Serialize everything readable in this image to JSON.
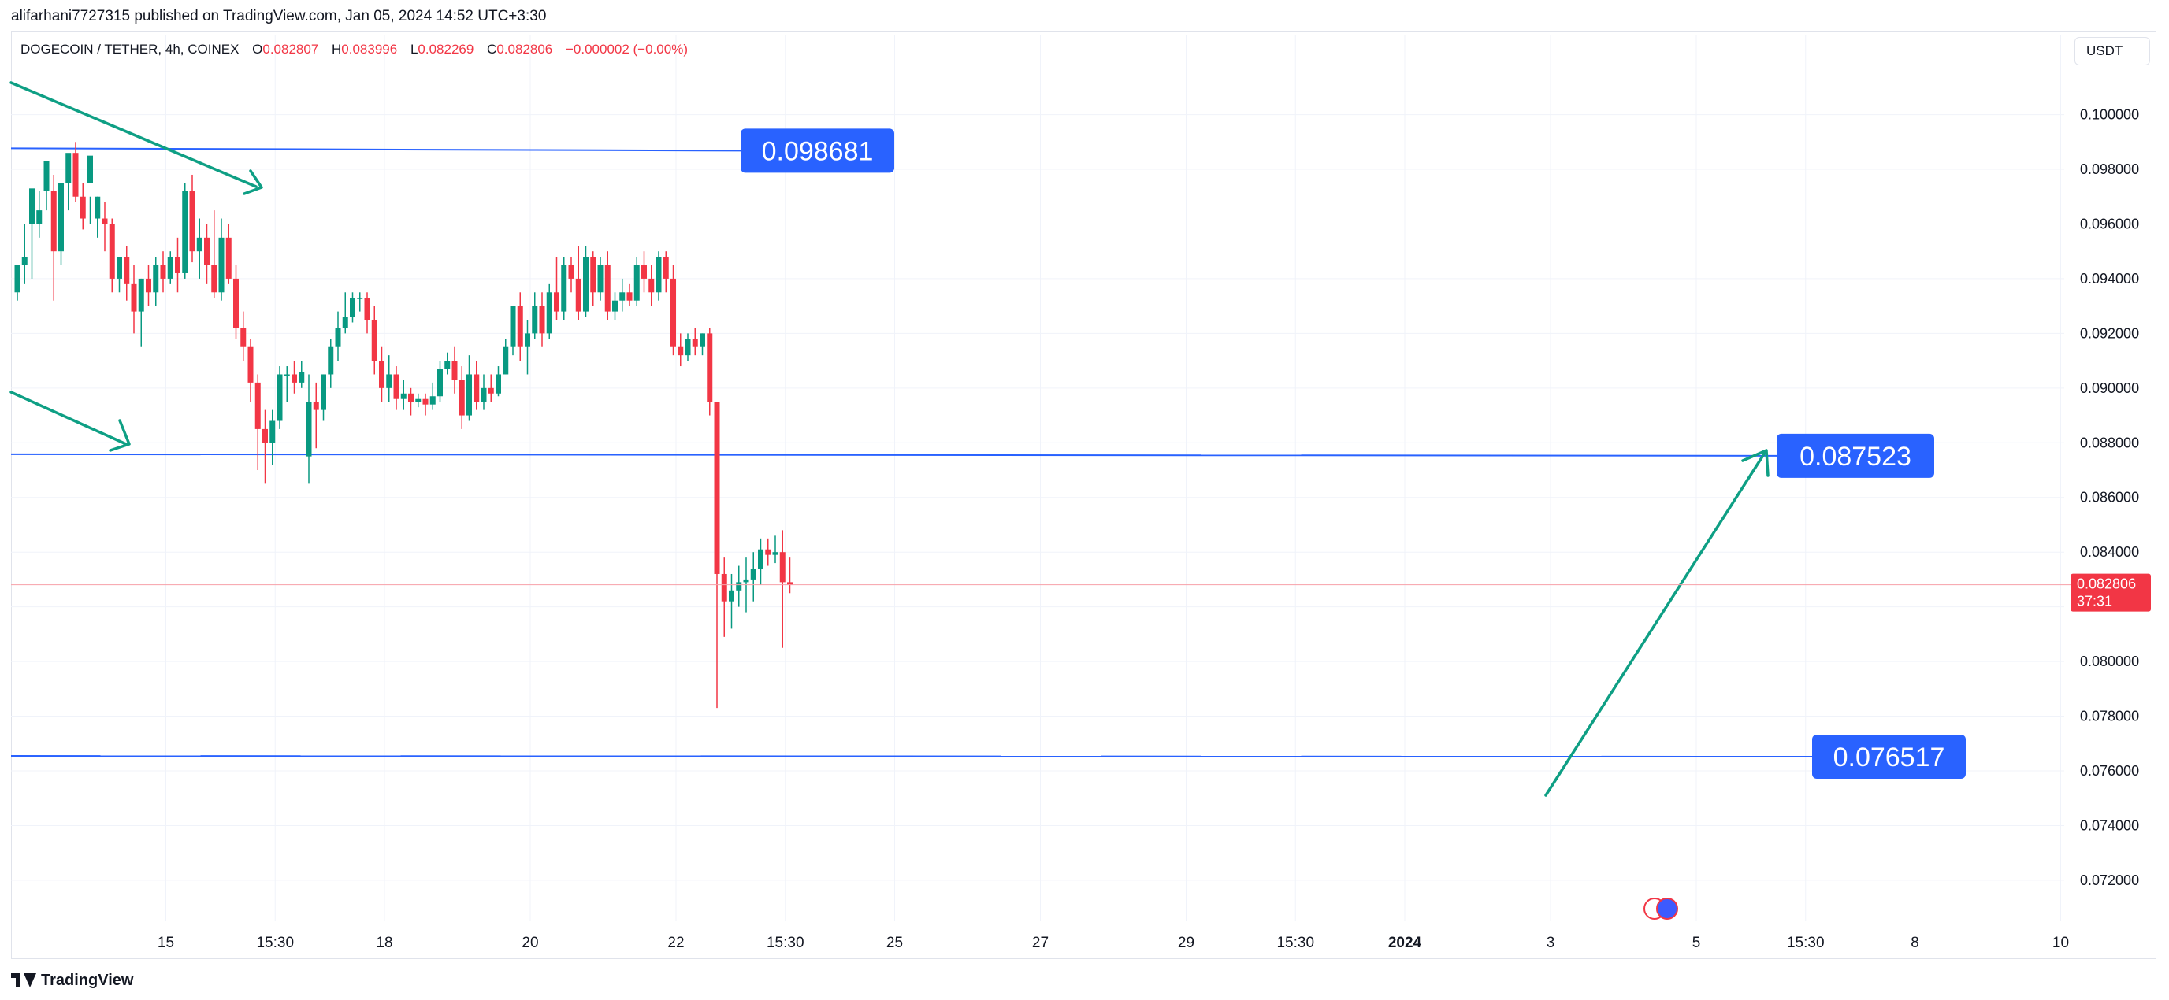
{
  "header": {
    "published_text": "alifarhani7727315 published on TradingView.com, Jan 05, 2024 14:52 UTC+3:30"
  },
  "legend": {
    "symbol": "DOGECOIN / TETHER, 4h, COINEX",
    "open_label": "O",
    "open_value": "0.082807",
    "high_label": "H",
    "high_value": "0.083996",
    "low_label": "L",
    "low_value": "0.082269",
    "close_label": "C",
    "close_value": "0.082806",
    "change": "−0.000002 (−0.00%)"
  },
  "currency_button": "USDT",
  "footer": {
    "brand": "TradingView"
  },
  "colors": {
    "up": "#089981",
    "down": "#f23645",
    "level_line": "#2962ff",
    "label_bg": "#2962ff",
    "arrow": "#0e9f84",
    "grid": "#f0f3fa",
    "axis_text": "#131722"
  },
  "chart_data": {
    "type": "candlestick",
    "ylim": [
      0.0705,
      0.1016
    ],
    "y_ticks": [
      "0.100000",
      "0.098000",
      "0.096000",
      "0.094000",
      "0.092000",
      "0.090000",
      "0.088000",
      "0.086000",
      "0.084000",
      "0.082000",
      "0.080000",
      "0.078000",
      "0.076000",
      "0.074000",
      "0.072000"
    ],
    "x_ticks": [
      {
        "label": "15",
        "bar": 10,
        "bold": false
      },
      {
        "label": "15:30",
        "bar": 25,
        "bold": false
      },
      {
        "label": "18",
        "bar": 40,
        "bold": false
      },
      {
        "label": "20",
        "bar": 60,
        "bold": false
      },
      {
        "label": "22",
        "bar": 80,
        "bold": false
      },
      {
        "label": "15:30",
        "bar": 95,
        "bold": false
      },
      {
        "label": "25",
        "bar": 110,
        "bold": false
      },
      {
        "label": "27",
        "bar": 130,
        "bold": false
      },
      {
        "label": "29",
        "bar": 150,
        "bold": false
      },
      {
        "label": "15:30",
        "bar": 165,
        "bold": false
      },
      {
        "label": "2024",
        "bar": 180,
        "bold": true
      },
      {
        "label": "3",
        "bar": 200,
        "bold": false
      },
      {
        "label": "5",
        "bar": 220,
        "bold": false
      },
      {
        "label": "15:30",
        "bar": 235,
        "bold": false
      },
      {
        "label": "8",
        "bar": 250,
        "bold": false
      },
      {
        "label": "10",
        "bar": 270,
        "bold": false
      }
    ],
    "candles": [
      [
        0.0935,
        0.0945,
        0.0935,
        0.0932
      ],
      [
        0.0945,
        0.0948,
        0.096,
        0.0938
      ],
      [
        0.096,
        0.0973,
        0.096,
        0.094
      ],
      [
        0.096,
        0.0965,
        0.0972,
        0.0955
      ],
      [
        0.0972,
        0.0983,
        0.0972,
        0.0965
      ],
      [
        0.0972,
        0.095,
        0.0978,
        0.0932
      ],
      [
        0.095,
        0.0975,
        0.095,
        0.0945
      ],
      [
        0.0975,
        0.0986,
        0.0975,
        0.0965
      ],
      [
        0.0986,
        0.097,
        0.099,
        0.0968
      ],
      [
        0.097,
        0.0962,
        0.0975,
        0.0958
      ],
      [
        0.0975,
        0.0985,
        0.097,
        0.096
      ],
      [
        0.0962,
        0.097,
        0.097,
        0.0955
      ],
      [
        0.0962,
        0.096,
        0.0968,
        0.095
      ],
      [
        0.096,
        0.094,
        0.0962,
        0.0935
      ],
      [
        0.094,
        0.0948,
        0.094,
        0.0935
      ],
      [
        0.0948,
        0.0938,
        0.0952,
        0.0932
      ],
      [
        0.0938,
        0.0928,
        0.0945,
        0.092
      ],
      [
        0.0928,
        0.094,
        0.094,
        0.0915
      ],
      [
        0.094,
        0.0935,
        0.0945,
        0.093
      ],
      [
        0.0935,
        0.0945,
        0.0948,
        0.093
      ],
      [
        0.0945,
        0.094,
        0.095,
        0.0935
      ],
      [
        0.094,
        0.0948,
        0.095,
        0.0938
      ],
      [
        0.0948,
        0.0942,
        0.0955,
        0.0935
      ],
      [
        0.0942,
        0.0972,
        0.0975,
        0.094
      ],
      [
        0.0972,
        0.095,
        0.0978,
        0.0946
      ],
      [
        0.095,
        0.0955,
        0.0962,
        0.094
      ],
      [
        0.0955,
        0.0945,
        0.096,
        0.0938
      ],
      [
        0.0945,
        0.0935,
        0.0965,
        0.0933
      ],
      [
        0.0935,
        0.0955,
        0.0962,
        0.0932
      ],
      [
        0.0955,
        0.094,
        0.096,
        0.0938
      ],
      [
        0.094,
        0.0922,
        0.0945,
        0.0918
      ],
      [
        0.0922,
        0.0915,
        0.0928,
        0.091
      ],
      [
        0.0915,
        0.0902,
        0.0918,
        0.0895
      ],
      [
        0.0902,
        0.0885,
        0.0905,
        0.087
      ],
      [
        0.0885,
        0.088,
        0.0892,
        0.0865
      ],
      [
        0.088,
        0.0888,
        0.0892,
        0.0872
      ],
      [
        0.0888,
        0.0905,
        0.0908,
        0.0885
      ],
      [
        0.0905,
        0.0905,
        0.0908,
        0.0895
      ],
      [
        0.0905,
        0.0902,
        0.091,
        0.0898
      ],
      [
        0.0902,
        0.0906,
        0.091,
        0.09
      ],
      [
        0.0875,
        0.0895,
        0.0905,
        0.0865
      ],
      [
        0.0895,
        0.0892,
        0.0902,
        0.0878
      ],
      [
        0.0892,
        0.0905,
        0.0905,
        0.0888
      ],
      [
        0.0905,
        0.0915,
        0.0918,
        0.09
      ],
      [
        0.0915,
        0.0922,
        0.0928,
        0.091
      ],
      [
        0.0922,
        0.0926,
        0.0935,
        0.092
      ],
      [
        0.0926,
        0.0933,
        0.0935,
        0.0924
      ],
      [
        0.0933,
        0.0933,
        0.0935,
        0.0928
      ],
      [
        0.0933,
        0.0925,
        0.0935,
        0.092
      ],
      [
        0.0925,
        0.091,
        0.093,
        0.0905
      ],
      [
        0.091,
        0.09,
        0.0915,
        0.0895
      ],
      [
        0.09,
        0.0905,
        0.0912,
        0.0895
      ],
      [
        0.0905,
        0.0896,
        0.0908,
        0.0892
      ],
      [
        0.0896,
        0.0898,
        0.0903,
        0.0892
      ],
      [
        0.0898,
        0.0895,
        0.09,
        0.089
      ],
      [
        0.0895,
        0.0896,
        0.0898,
        0.0893
      ],
      [
        0.0896,
        0.0894,
        0.0898,
        0.089
      ],
      [
        0.0894,
        0.0897,
        0.0902,
        0.0892
      ],
      [
        0.0897,
        0.0907,
        0.091,
        0.0895
      ],
      [
        0.0907,
        0.091,
        0.0913,
        0.0905
      ],
      [
        0.091,
        0.0903,
        0.0915,
        0.0898
      ],
      [
        0.0903,
        0.089,
        0.0908,
        0.0885
      ],
      [
        0.089,
        0.0905,
        0.0912,
        0.0888
      ],
      [
        0.0905,
        0.0895,
        0.091,
        0.0892
      ],
      [
        0.0895,
        0.09,
        0.0905,
        0.0892
      ],
      [
        0.09,
        0.0898,
        0.0905,
        0.0895
      ],
      [
        0.0898,
        0.0905,
        0.0908,
        0.0897
      ],
      [
        0.0905,
        0.0915,
        0.0918,
        0.0905
      ],
      [
        0.0915,
        0.093,
        0.093,
        0.0912
      ],
      [
        0.093,
        0.0915,
        0.0935,
        0.091
      ],
      [
        0.0915,
        0.092,
        0.0925,
        0.0905
      ],
      [
        0.092,
        0.093,
        0.0935,
        0.0918
      ],
      [
        0.093,
        0.092,
        0.0935,
        0.0915
      ],
      [
        0.092,
        0.0935,
        0.0938,
        0.0918
      ],
      [
        0.0935,
        0.0928,
        0.0948,
        0.0925
      ],
      [
        0.0928,
        0.0945,
        0.0948,
        0.0925
      ],
      [
        0.0945,
        0.094,
        0.0948,
        0.0935
      ],
      [
        0.094,
        0.0928,
        0.0952,
        0.0925
      ],
      [
        0.0928,
        0.0948,
        0.0952,
        0.0926
      ],
      [
        0.0948,
        0.0935,
        0.095,
        0.093
      ],
      [
        0.0935,
        0.0945,
        0.0948,
        0.0932
      ],
      [
        0.0945,
        0.0928,
        0.095,
        0.0925
      ],
      [
        0.0928,
        0.0932,
        0.0935,
        0.0925
      ],
      [
        0.0932,
        0.0935,
        0.094,
        0.0928
      ],
      [
        0.0935,
        0.0932,
        0.0938,
        0.093
      ],
      [
        0.0932,
        0.0945,
        0.0948,
        0.093
      ],
      [
        0.0945,
        0.094,
        0.095,
        0.0935
      ],
      [
        0.094,
        0.0935,
        0.0945,
        0.093
      ],
      [
        0.0935,
        0.0948,
        0.095,
        0.0932
      ],
      [
        0.0948,
        0.094,
        0.095,
        0.0935
      ]
    ],
    "candles_note": "",
    "levels": [
      {
        "label": "0.098681",
        "value": 0.098681
      },
      {
        "label": "0.087523",
        "value": 0.087523
      },
      {
        "label": "0.076517",
        "value": 0.076517
      }
    ],
    "last_price": {
      "value": "0.082806",
      "countdown": "37:31"
    }
  }
}
